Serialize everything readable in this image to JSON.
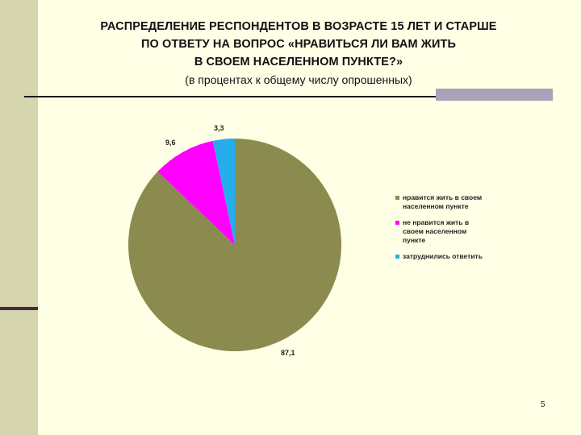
{
  "slide": {
    "title_lines": [
      "РАСПРЕДЕЛЕНИЕ РЕСПОНДЕНТОВ В ВОЗРАСТЕ 15 ЛЕТ И СТАРШЕ",
      "ПО ОТВЕТУ НА ВОПРОС «НРАВИТЬСЯ ЛИ ВАМ ЖИТЬ",
      "В СВОЕМ НАСЕЛЕННОМ ПУНКТЕ?»"
    ],
    "subtitle": "(в процентах к общему числу опрошенных)",
    "page_number": "5"
  },
  "chart_data": {
    "type": "pie",
    "title": "",
    "slices": [
      {
        "label": "нравится жить в своем населенном пункте",
        "value": 87.1,
        "display": "87,1",
        "color": "#8B8B4F"
      },
      {
        "label": "не нравится жить в своем населенном пункте",
        "value": 9.6,
        "display": "9,6",
        "color": "#FF00FF"
      },
      {
        "label": "затруднились ответить",
        "value": 3.3,
        "display": "3,3",
        "color": "#25AEEC"
      }
    ],
    "legend_position": "right"
  }
}
